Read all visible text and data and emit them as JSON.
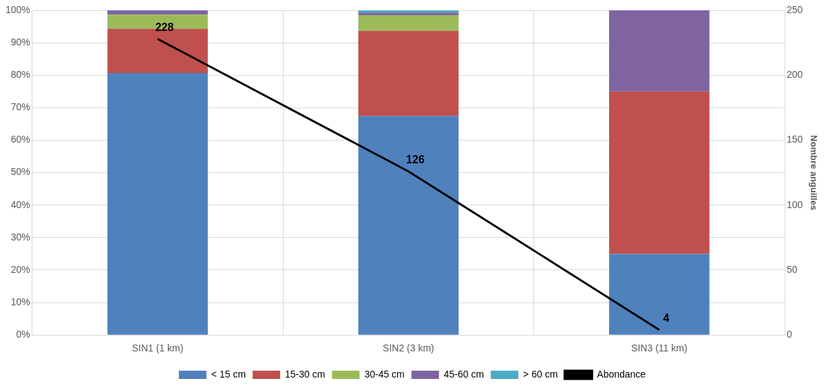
{
  "chart_data": {
    "type": "bar",
    "stacked": true,
    "categories": [
      "SIN1 (1 km)",
      "SIN2 (3 km)",
      "SIN3 (11 km)"
    ],
    "series": [
      {
        "name": "< 15 cm",
        "color": "#4f81bd",
        "values": [
          80.7,
          67.5,
          25
        ]
      },
      {
        "name": "15-30 cm",
        "color": "#c0504d",
        "values": [
          13.6,
          26.2,
          50
        ]
      },
      {
        "name": "30-45 cm",
        "color": "#9bbb59",
        "values": [
          4.4,
          4.8,
          0
        ]
      },
      {
        "name": "45-60 cm",
        "color": "#8064a2",
        "values": [
          1.3,
          0.8,
          25
        ]
      },
      {
        "name": "> 60 cm",
        "color": "#4bacc6",
        "values": [
          0,
          0.8,
          0
        ]
      },
      {
        "name": "Abondance",
        "type": "line",
        "axis": "y2",
        "color": "#000000",
        "values": [
          228,
          126,
          4
        ],
        "value_labels": [
          "228",
          "126",
          "4"
        ]
      }
    ],
    "ylim": [
      0,
      100
    ],
    "yticks": [
      {
        "value": 0,
        "label": "0%"
      },
      {
        "value": 10,
        "label": "10%"
      },
      {
        "value": 20,
        "label": "20%"
      },
      {
        "value": 30,
        "label": "30%"
      },
      {
        "value": 40,
        "label": "40%"
      },
      {
        "value": 50,
        "label": "50%"
      },
      {
        "value": 60,
        "label": "60%"
      },
      {
        "value": 70,
        "label": "70%"
      },
      {
        "value": 80,
        "label": "80%"
      },
      {
        "value": 90,
        "label": "90%"
      },
      {
        "value": 100,
        "label": "100%"
      }
    ],
    "y2lim": [
      0,
      250
    ],
    "y2ticks": [
      0,
      50,
      100,
      150,
      200,
      250
    ],
    "y2label": "Nombre anguilles",
    "grid": true,
    "legend": "bottom",
    "marker": "none",
    "line_style": "solid"
  }
}
